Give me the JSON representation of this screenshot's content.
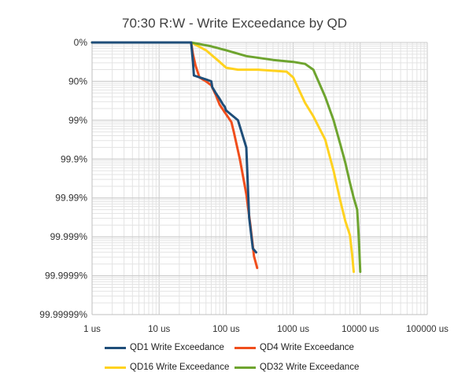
{
  "chart_data": {
    "type": "line",
    "title": "70:30 R:W - Write Exceedance by QD",
    "x_scale": "log10",
    "xlim": [
      1,
      100000
    ],
    "x_tick_labels": [
      "1 us",
      "10 us",
      "100 us",
      "1000 us",
      "10000 us",
      "100000 us"
    ],
    "y_scale": "exceedance (nines)",
    "ylim_nines": [
      0,
      7
    ],
    "y_tick_labels": [
      "0%",
      "90%",
      "99%",
      "99.9%",
      "99.99%",
      "99.999%",
      "99.9999%",
      "99.99999%"
    ],
    "grid": true,
    "legend_position": "bottom",
    "series": [
      {
        "name": "QD1 Write Exceedance",
        "color": "#1f4e79",
        "x": [
          1,
          30,
          32,
          33,
          50,
          60,
          62,
          70,
          80,
          90,
          95,
          100,
          150,
          200,
          220,
          250,
          280
        ],
        "y_nines": [
          0,
          0,
          0.5,
          0.85,
          0.95,
          1.0,
          1.15,
          1.3,
          1.45,
          1.6,
          1.65,
          1.75,
          2.0,
          2.7,
          4.5,
          5.3,
          5.4
        ]
      },
      {
        "name": "QD4 Write Exceedance",
        "color": "#f04e1c",
        "x": [
          1,
          30,
          32,
          35,
          40,
          50,
          60,
          70,
          80,
          100,
          120,
          130,
          160,
          200,
          230,
          260,
          290
        ],
        "y_nines": [
          0,
          0,
          0.3,
          0.6,
          0.9,
          1.0,
          1.1,
          1.35,
          1.6,
          1.85,
          2.05,
          2.3,
          3.0,
          3.9,
          4.7,
          5.5,
          5.8
        ]
      },
      {
        "name": "QD16 Write Exceedance",
        "color": "#ffd21f",
        "x": [
          1,
          30,
          50,
          80,
          100,
          150,
          300,
          800,
          1000,
          1500,
          2000,
          3000,
          4000,
          5000,
          6000,
          7000,
          7500,
          8000
        ],
        "y_nines": [
          0,
          0,
          0.2,
          0.5,
          0.65,
          0.7,
          0.7,
          0.75,
          0.9,
          1.55,
          1.9,
          2.5,
          3.3,
          4.05,
          4.6,
          4.95,
          5.4,
          5.9
        ]
      },
      {
        "name": "QD32 Write Exceedance",
        "color": "#6ea42f",
        "x": [
          1,
          30,
          60,
          100,
          200,
          500,
          1000,
          1500,
          2000,
          3000,
          4000,
          5000,
          6000,
          7000,
          8000,
          9000,
          9500,
          10000
        ],
        "y_nines": [
          0,
          0,
          0.1,
          0.2,
          0.35,
          0.45,
          0.5,
          0.55,
          0.7,
          1.4,
          2.0,
          2.6,
          3.1,
          3.6,
          4.0,
          4.3,
          5.0,
          5.9
        ]
      }
    ]
  }
}
